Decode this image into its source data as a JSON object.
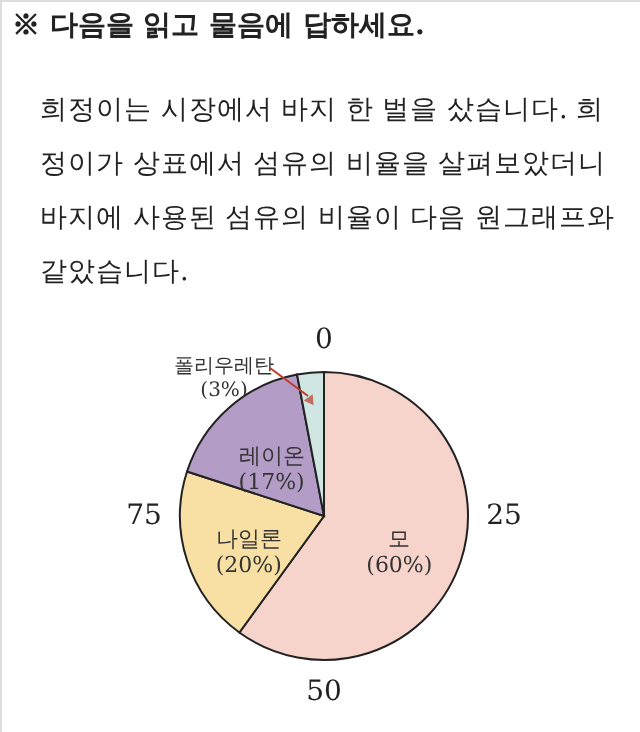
{
  "chart_data": {
    "type": "pie",
    "title": "※ 다음을 읽고 물음에 답하세요.",
    "subtitle": "희정이는 시장에서 바지 한 벌을 샀습니다. 희\n정이가 상표에서 섬유의 비율을 살펴보았더니\n바지에 사용된 섬유의 비율이 다음 원그래프와\n같았습니다.",
    "categories": [
      "모",
      "나일론",
      "레이온",
      "폴리우레탄"
    ],
    "values": [
      60,
      20,
      17,
      3
    ],
    "colors": [
      "#f6d3cb",
      "#f8e0a4",
      "#b39cc6",
      "#cfe6e2"
    ],
    "value_labels": [
      "(60%)",
      "(20%)",
      "(17%)",
      "(3%)"
    ],
    "annotations": [
      "0",
      "25",
      "50",
      "75"
    ]
  }
}
